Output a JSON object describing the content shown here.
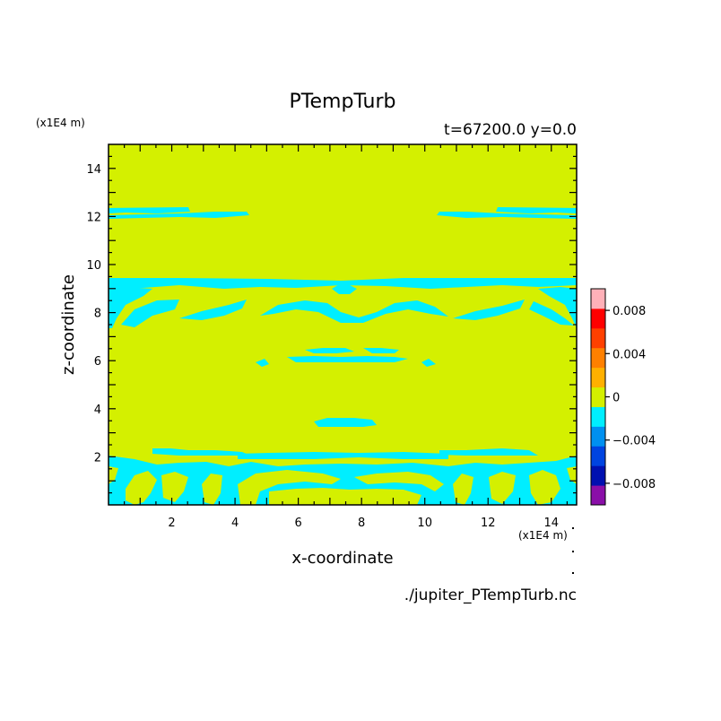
{
  "chart_data": {
    "type": "heatmap",
    "title": "PTempTurb",
    "subtitle": "t=67200.0 y=0.0",
    "xlabel": "x-coordinate",
    "ylabel": "z-coordinate",
    "x_unit": "(x1E4 m)",
    "y_unit": "(x1E4 m)",
    "footer": "./jupiter_PTempTurb.nc",
    "xlim": [
      0,
      14.8
    ],
    "ylim": [
      0,
      15
    ],
    "xticks": [
      "2",
      "4",
      "6",
      "8",
      "10",
      "12",
      "14"
    ],
    "yticks": [
      "2",
      "4",
      "6",
      "8",
      "10",
      "12",
      "14"
    ],
    "colorbar": {
      "levels": [
        -0.01,
        -0.008,
        -0.006,
        -0.004,
        -0.002,
        0,
        0.002,
        0.004,
        0.006,
        0.008,
        0.01
      ],
      "colors": [
        "#8a0fa8",
        "#0010b0",
        "#0044e0",
        "#0090f0",
        "#00eeff",
        "#d4f000",
        "#ffb000",
        "#ff8000",
        "#ff4000",
        "#ff0000",
        "#ffb0b8"
      ],
      "tick_labels": [
        "0.008",
        "0.004",
        "0",
        "-0.004",
        "-0.008"
      ]
    },
    "background_value_color": "#d4f000",
    "anomaly_color": "#00eeff",
    "grid": false
  }
}
